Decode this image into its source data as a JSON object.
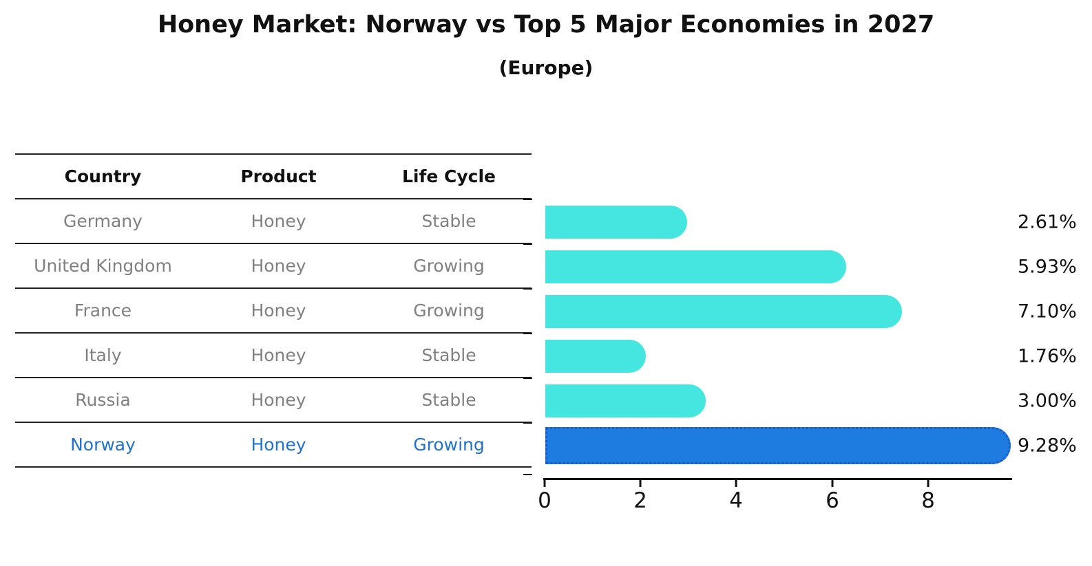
{
  "title": "Honey Market: Norway vs Top 5 Major Economies in 2027",
  "subtitle": "(Europe)",
  "table": {
    "headers": [
      "Country",
      "Product",
      "Life Cycle"
    ],
    "rows": [
      {
        "country": "Germany",
        "product": "Honey",
        "life_cycle": "Stable",
        "highlighted": false
      },
      {
        "country": "United Kingdom",
        "product": "Honey",
        "life_cycle": "Growing",
        "highlighted": false
      },
      {
        "country": "France",
        "product": "Honey",
        "life_cycle": "Growing",
        "highlighted": false
      },
      {
        "country": "Italy",
        "product": "Honey",
        "life_cycle": "Stable",
        "highlighted": false
      },
      {
        "country": "Russia",
        "product": "Honey",
        "life_cycle": "Stable",
        "highlighted": false
      },
      {
        "country": "Norway",
        "product": "Honey",
        "life_cycle": "Growing",
        "highlighted": true
      }
    ]
  },
  "chart_data": {
    "type": "bar",
    "orientation": "horizontal",
    "title": "Honey Market: Norway vs Top 5 Major Economies in 2027",
    "subtitle": "(Europe)",
    "categories": [
      "Germany",
      "United Kingdom",
      "France",
      "Italy",
      "Russia",
      "Norway"
    ],
    "values": [
      2.61,
      5.93,
      7.1,
      1.76,
      3.0,
      9.28
    ],
    "value_labels": [
      "2.61%",
      "5.93%",
      "7.10%",
      "1.76%",
      "3.00%",
      "9.28%"
    ],
    "highlight_index": 5,
    "x_ticks": [
      "0",
      "2",
      "4",
      "6",
      "8"
    ],
    "xlim": [
      0,
      9.75
    ],
    "grid": false,
    "legend": false,
    "colors": {
      "bar": "#45E6E0",
      "highlight_bar": "#1E7BE0",
      "highlight_border": "#1A5ACC",
      "highlight_text": "#1F72D0",
      "table_text": "#808080",
      "text": "#111111"
    }
  }
}
